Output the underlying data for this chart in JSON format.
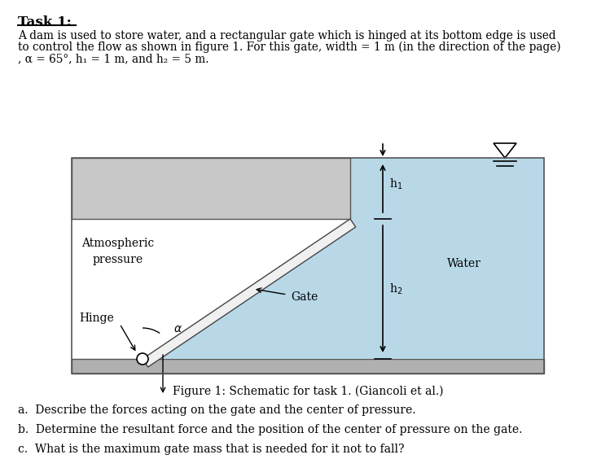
{
  "title": "Task 1:",
  "para1_line1": "A dam is used to store water, and a rectangular gate which is hinged at its bottom edge is used",
  "para1_line2": "to control the flow as shown in figure 1. For this gate, width = 1 m (in the direction of the page)",
  "para1_line3": ", α = 65°, h₁ = 1 m, and h₂ = 5 m.",
  "fig_caption": "Figure 1: Schematic for task 1. (Giancoli et al.)",
  "qa": "a.  Describe the forces acting on the gate and the center of pressure.",
  "qb": "b.  Determine the resultant force and the position of the center of pressure on the gate.",
  "qc": "c.  What is the maximum gate mass that is needed for it not to fall?",
  "water_color": "#b8d8e8",
  "dam_color": "#c8c8c8",
  "floor_color": "#b0b0b0",
  "gate_color": "#f0f0f0",
  "border_color": "#555555"
}
